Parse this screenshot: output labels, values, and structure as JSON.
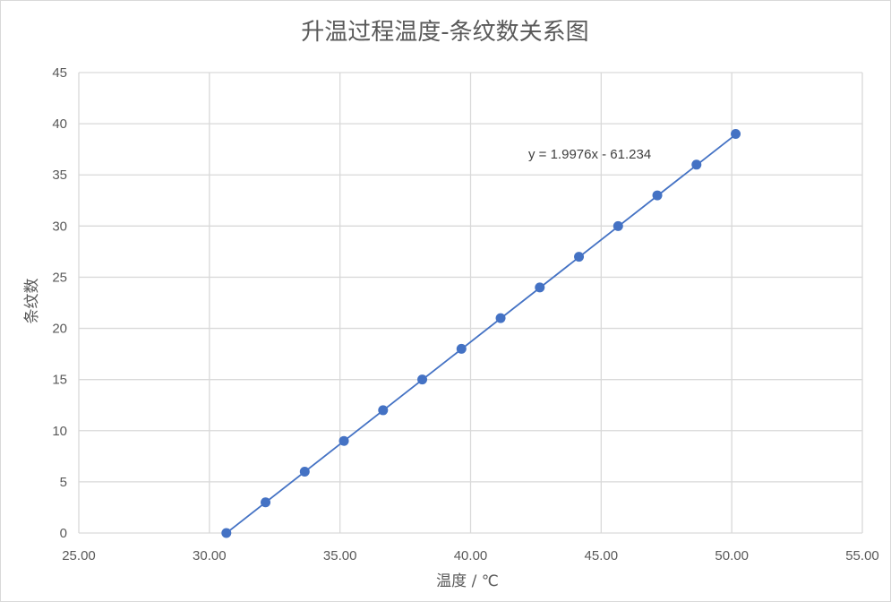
{
  "chart_data": {
    "type": "scatter",
    "title": "升温过程温度-条纹数关系图",
    "xlabel": "温度 / ℃",
    "ylabel": "条纹数",
    "xlim": [
      25,
      55
    ],
    "ylim": [
      0,
      45
    ],
    "x_ticks": [
      "25.00",
      "30.00",
      "35.00",
      "40.00",
      "45.00",
      "50.00",
      "55.00"
    ],
    "y_ticks": [
      "0",
      "5",
      "10",
      "15",
      "20",
      "25",
      "30",
      "35",
      "40",
      "45"
    ],
    "grid": true,
    "series": [
      {
        "x": [
          30.65,
          32.15,
          33.65,
          35.15,
          36.65,
          38.15,
          39.65,
          41.15,
          42.65,
          44.15,
          45.65,
          47.15,
          48.65,
          50.15
        ],
        "y": [
          0,
          3,
          6,
          9,
          12,
          15,
          18,
          21,
          24,
          27,
          30,
          33,
          36,
          39
        ]
      }
    ],
    "trendline": {
      "slope": 1.9976,
      "intercept": -61.234,
      "label": "y = 1.9976x - 61.234"
    },
    "colors": {
      "series": "#4472c4",
      "grid": "#d9d9d9",
      "text": "#595959"
    }
  }
}
